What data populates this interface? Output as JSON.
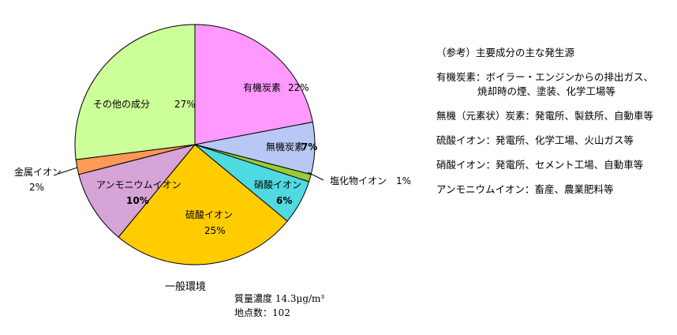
{
  "chart_data": {
    "type": "pie",
    "title": "一般環境",
    "slices": [
      {
        "label": "有機炭素",
        "value_label": "22%",
        "value": 22,
        "color": "#ff99ff"
      },
      {
        "label": "無機炭素",
        "value_label": "7%",
        "value": 7,
        "color": "#b8c8f5"
      },
      {
        "label": "塩化物イオン",
        "value_label": "1%",
        "value": 1,
        "color": "#99cc33"
      },
      {
        "label": "硝酸イオン",
        "value_label": "6%",
        "value": 6,
        "color": "#4fd9e0"
      },
      {
        "label": "硫酸イオン",
        "value_label": "25%",
        "value": 25,
        "color": "#ffcc00"
      },
      {
        "label": "アンモニウムイオン",
        "value_label": "10%",
        "value": 10,
        "color": "#d6a4d6"
      },
      {
        "label": "金属イオン",
        "value_label": "2%",
        "value": 2,
        "color": "#ff9955"
      },
      {
        "label": "その他の成分",
        "value_label": "27%",
        "value": 27,
        "color": "#ccff99"
      }
    ]
  },
  "caption": {
    "title": "一般環境",
    "concentration": "質量濃度 14.3μg/m³",
    "sites": "地点数：102"
  },
  "reference": {
    "heading": "（参考）主要成分の主な発生源",
    "lines": [
      "有機炭素：ボイラー・エンジンからの排出ガス、",
      "焼却時の煙、塗装、化学工場等",
      "無機（元素状）炭素：発電所、製鉄所、自動車等",
      "硫酸イオン：発電所、化学工場、火山ガス等",
      "硝酸イオン：発電所、セメント工場、自動車等",
      "アンモニウムイオン：畜産、農業肥料等"
    ]
  }
}
